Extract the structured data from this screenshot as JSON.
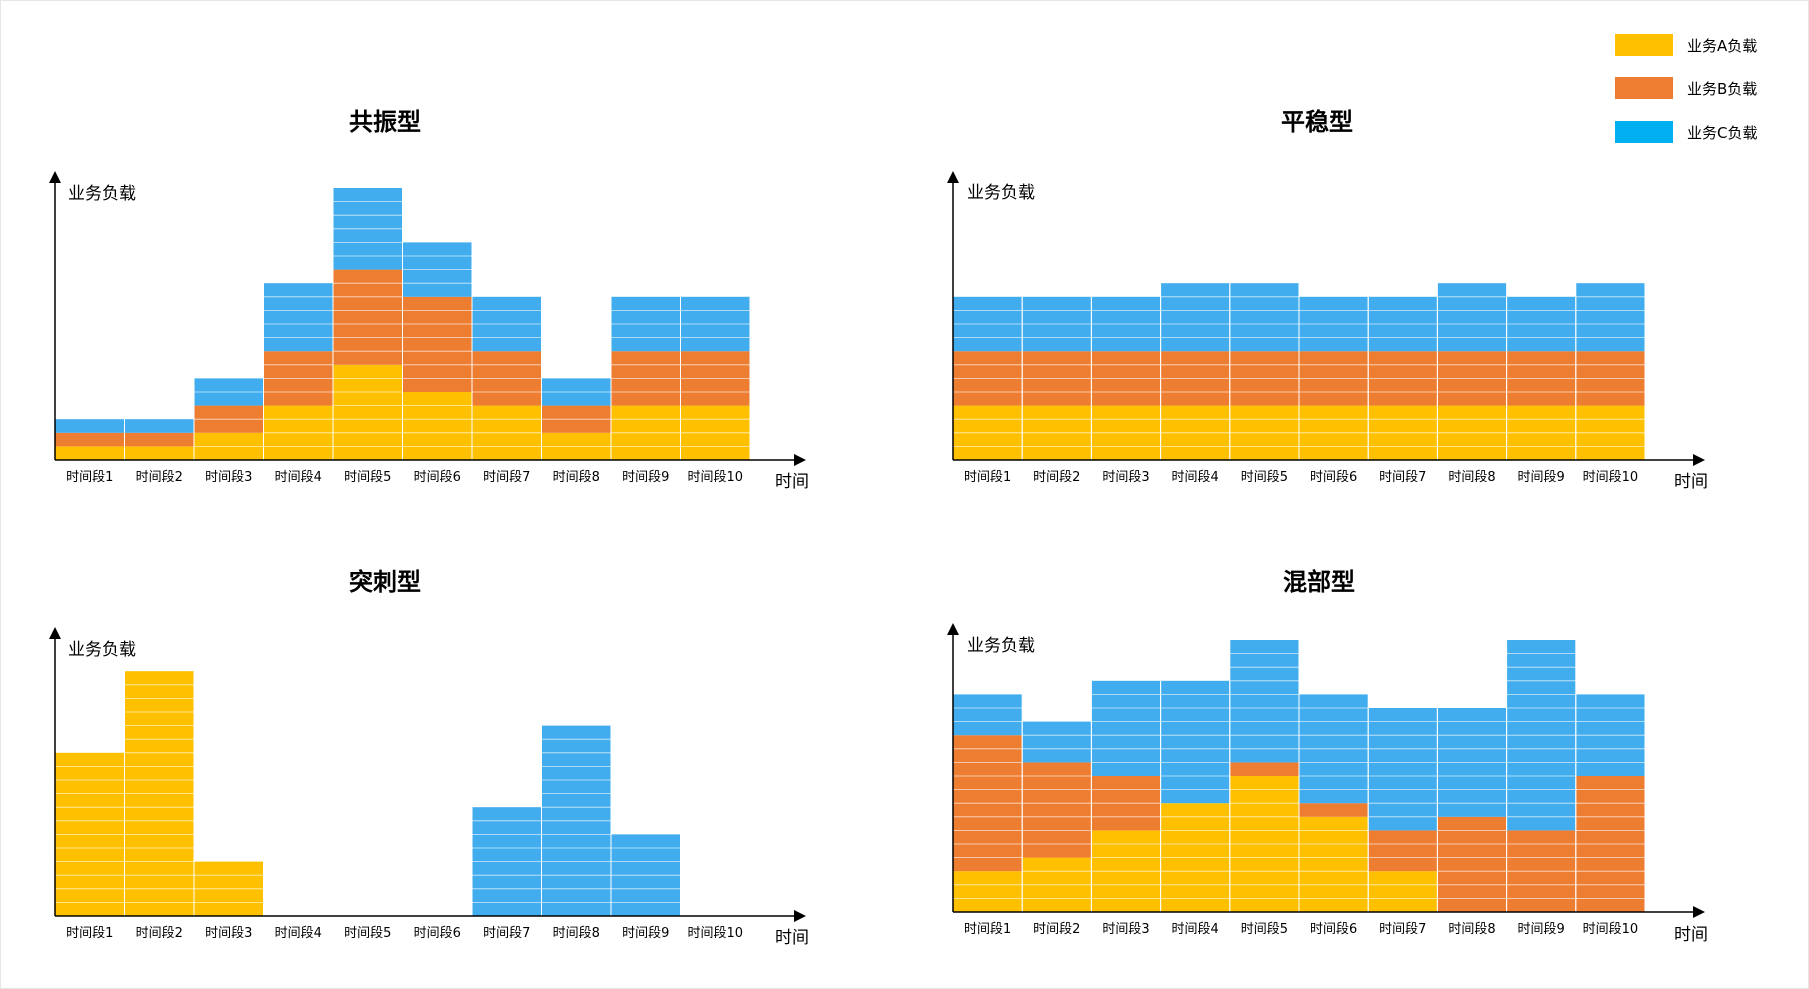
{
  "colors": {
    "A": "#FFC000",
    "B": "#ED7D31",
    "C": "#41ADEE",
    "legend_C": "#00B0F0"
  },
  "legend": [
    {
      "key": "A",
      "label": "业务A负载"
    },
    {
      "key": "B",
      "label": "业务B负载"
    },
    {
      "key": "C",
      "label": "业务C负载"
    }
  ],
  "chart_data": [
    {
      "type": "bar",
      "stacked": true,
      "title": "共振型",
      "ylabel": "业务负载",
      "xlabel": "时间",
      "categories": [
        "时间段1",
        "时间段2",
        "时间段3",
        "时间段4",
        "时间段5",
        "时间段6",
        "时间段7",
        "时间段8",
        "时间段9",
        "时间段10"
      ],
      "ylim": [
        0,
        20
      ],
      "series": [
        {
          "name": "业务A负载",
          "key": "A",
          "values": [
            1,
            1,
            2,
            4,
            7,
            5,
            4,
            2,
            4,
            4
          ]
        },
        {
          "name": "业务B负载",
          "key": "B",
          "values": [
            1,
            1,
            2,
            4,
            7,
            7,
            4,
            2,
            4,
            4
          ]
        },
        {
          "name": "业务C负载",
          "key": "C",
          "values": [
            1,
            1,
            2,
            5,
            6,
            4,
            4,
            2,
            4,
            4
          ]
        }
      ]
    },
    {
      "type": "bar",
      "stacked": true,
      "title": "平稳型",
      "ylabel": "业务负载",
      "xlabel": "时间",
      "categories": [
        "时间段1",
        "时间段2",
        "时间段3",
        "时间段4",
        "时间段5",
        "时间段6",
        "时间段7",
        "时间段8",
        "时间段9",
        "时间段10"
      ],
      "ylim": [
        0,
        20
      ],
      "series": [
        {
          "name": "业务A负载",
          "key": "A",
          "values": [
            4,
            4,
            4,
            4,
            4,
            4,
            4,
            4,
            4,
            4
          ]
        },
        {
          "name": "业务B负载",
          "key": "B",
          "values": [
            4,
            4,
            4,
            4,
            4,
            4,
            4,
            4,
            4,
            4
          ]
        },
        {
          "name": "业务C负载",
          "key": "C",
          "values": [
            4,
            4,
            4,
            5,
            5,
            4,
            4,
            5,
            4,
            5
          ]
        }
      ]
    },
    {
      "type": "bar",
      "stacked": true,
      "title": "突刺型",
      "ylabel": "业务负载",
      "xlabel": "时间",
      "categories": [
        "时间段1",
        "时间段2",
        "时间段3",
        "时间段4",
        "时间段5",
        "时间段6",
        "时间段7",
        "时间段8",
        "时间段9",
        "时间段10"
      ],
      "ylim": [
        0,
        20
      ],
      "series": [
        {
          "name": "业务A负载",
          "key": "A",
          "values": [
            12,
            18,
            4,
            0,
            0,
            0,
            0,
            0,
            0,
            0
          ]
        },
        {
          "name": "业务B负载",
          "key": "B",
          "values": [
            0,
            0,
            0,
            0,
            0,
            0,
            0,
            0,
            0,
            0
          ]
        },
        {
          "name": "业务C负载",
          "key": "C",
          "values": [
            0,
            0,
            0,
            0,
            0,
            0,
            8,
            14,
            6,
            0
          ]
        }
      ]
    },
    {
      "type": "bar",
      "stacked": true,
      "title": "混部型",
      "ylabel": "业务负载",
      "xlabel": "时间",
      "categories": [
        "时间段1",
        "时间段2",
        "时间段3",
        "时间段4",
        "时间段5",
        "时间段6",
        "时间段7",
        "时间段8",
        "时间段9",
        "时间段10"
      ],
      "ylim": [
        0,
        20
      ],
      "series": [
        {
          "name": "业务A负载",
          "key": "A",
          "values": [
            3,
            4,
            6,
            8,
            10,
            7,
            3,
            0,
            0,
            0
          ]
        },
        {
          "name": "业务B负载",
          "key": "B",
          "values": [
            10,
            7,
            4,
            0,
            1,
            1,
            3,
            7,
            6,
            10
          ]
        },
        {
          "name": "业务C负载",
          "key": "C",
          "values": [
            3,
            3,
            7,
            9,
            9,
            8,
            9,
            8,
            14,
            6
          ]
        }
      ]
    }
  ]
}
